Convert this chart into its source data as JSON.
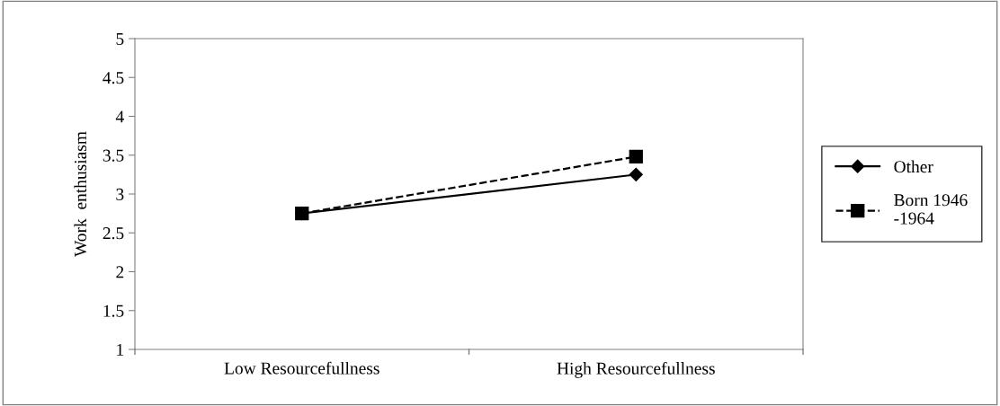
{
  "chart_data": {
    "type": "line",
    "ylabel": "Work  enthusiasm",
    "categories": [
      "Low Resourcefullness",
      "High Resourcefullness"
    ],
    "series": [
      {
        "name": "Other",
        "color": "#000000",
        "values": [
          2.75,
          3.25
        ],
        "marker": "diamond",
        "line_style": "solid"
      },
      {
        "name": "Born 1946\n-1964",
        "color": "#000000",
        "values": [
          2.75,
          3.48
        ],
        "marker": "square",
        "line_style": "dashed"
      }
    ],
    "ylim": [
      1,
      5
    ],
    "yticks": [
      1,
      1.5,
      2,
      2.5,
      3,
      3.5,
      4,
      4.5,
      5
    ],
    "grid": false,
    "legend": "right"
  }
}
